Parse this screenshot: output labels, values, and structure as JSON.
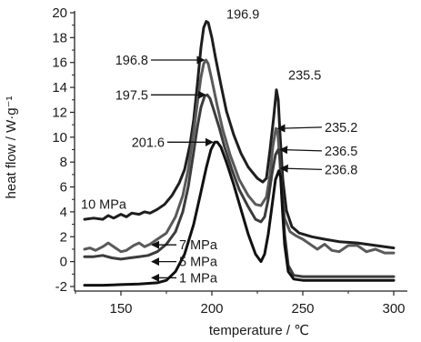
{
  "chart_data": {
    "type": "line",
    "xlabel": "temperature / ℃",
    "ylabel": "heat flow / W·g⁻¹",
    "xlim": [
      130,
      300
    ],
    "ylim": [
      -2,
      20
    ],
    "x_ticks": [
      150,
      200,
      250,
      300
    ],
    "y_ticks": [
      -2,
      0,
      2,
      4,
      6,
      8,
      10,
      12,
      14,
      16,
      18,
      20
    ],
    "grid": false,
    "legend": "none",
    "series": [
      {
        "name": "10 MPa",
        "color": "#1e1e1e",
        "points": [
          [
            130,
            3.4
          ],
          [
            135,
            3.5
          ],
          [
            140,
            3.4
          ],
          [
            143,
            3.7
          ],
          [
            146,
            3.5
          ],
          [
            150,
            3.8
          ],
          [
            153,
            3.6
          ],
          [
            156,
            3.9
          ],
          [
            160,
            3.8
          ],
          [
            163,
            4.0
          ],
          [
            166,
            3.9
          ],
          [
            170,
            4.2
          ],
          [
            174,
            4.6
          ],
          [
            178,
            5.3
          ],
          [
            182,
            6.3
          ],
          [
            185,
            7.4
          ],
          [
            188,
            9.4
          ],
          [
            190,
            11.4
          ],
          [
            192,
            14.2
          ],
          [
            194,
            17.2
          ],
          [
            195.5,
            18.8
          ],
          [
            196.9,
            19.3
          ],
          [
            198,
            19.2
          ],
          [
            200,
            18.0
          ],
          [
            202,
            16.4
          ],
          [
            205,
            14.2
          ],
          [
            208,
            12.1
          ],
          [
            212,
            10.2
          ],
          [
            216,
            8.7
          ],
          [
            220,
            7.6
          ],
          [
            225,
            6.7
          ],
          [
            228,
            6.4
          ],
          [
            230,
            6.7
          ],
          [
            232,
            9.0
          ],
          [
            234,
            11.6
          ],
          [
            235.5,
            13.8
          ],
          [
            236.5,
            13.0
          ],
          [
            237.5,
            10.2
          ],
          [
            239,
            6.6
          ],
          [
            241,
            4.1
          ],
          [
            244,
            2.8
          ],
          [
            248,
            2.3
          ],
          [
            255,
            2.0
          ],
          [
            262,
            1.8
          ],
          [
            270,
            1.6
          ],
          [
            280,
            1.5
          ],
          [
            290,
            1.3
          ],
          [
            300,
            1.1
          ]
        ]
      },
      {
        "name": "7 MPa",
        "color": "#5a5a5a",
        "points": [
          [
            130,
            1.0
          ],
          [
            133,
            1.1
          ],
          [
            136,
            0.9
          ],
          [
            140,
            1.2
          ],
          [
            143,
            1.5
          ],
          [
            146,
            1.2
          ],
          [
            150,
            0.8
          ],
          [
            153,
            0.9
          ],
          [
            157,
            1.3
          ],
          [
            160,
            1.5
          ],
          [
            163,
            1.2
          ],
          [
            166,
            1.4
          ],
          [
            170,
            1.8
          ],
          [
            175,
            2.3
          ],
          [
            180,
            3.6
          ],
          [
            184,
            5.3
          ],
          [
            187,
            7.4
          ],
          [
            190,
            10.4
          ],
          [
            192,
            12.7
          ],
          [
            194,
            14.8
          ],
          [
            195.5,
            15.9
          ],
          [
            196.8,
            16.2
          ],
          [
            198,
            15.9
          ],
          [
            200,
            14.6
          ],
          [
            203,
            12.5
          ],
          [
            206,
            10.6
          ],
          [
            210,
            8.6
          ],
          [
            215,
            6.6
          ],
          [
            220,
            5.3
          ],
          [
            224,
            4.6
          ],
          [
            227,
            4.5
          ],
          [
            230,
            5.2
          ],
          [
            232,
            7.0
          ],
          [
            233.5,
            9.2
          ],
          [
            235.2,
            10.7
          ],
          [
            236.2,
            10.4
          ],
          [
            237.2,
            8.5
          ],
          [
            238.5,
            5.3
          ],
          [
            240,
            3.5
          ],
          [
            243,
            2.4
          ],
          [
            246,
            2.1
          ],
          [
            250,
            1.8
          ],
          [
            254,
            1.4
          ],
          [
            258,
            1.0
          ],
          [
            262,
            1.4
          ],
          [
            266,
            0.9
          ],
          [
            270,
            0.8
          ],
          [
            275,
            1.3
          ],
          [
            280,
            1.3
          ],
          [
            285,
            0.8
          ],
          [
            290,
            1.0
          ],
          [
            295,
            0.7
          ],
          [
            300,
            0.7
          ]
        ]
      },
      {
        "name": "5 MPa",
        "color": "#3c3c3c",
        "points": [
          [
            130,
            0.4
          ],
          [
            135,
            0.4
          ],
          [
            140,
            0.5
          ],
          [
            145,
            0.3
          ],
          [
            150,
            0.2
          ],
          [
            155,
            0.3
          ],
          [
            160,
            0.4
          ],
          [
            165,
            0.5
          ],
          [
            170,
            0.8
          ],
          [
            175,
            1.4
          ],
          [
            180,
            2.4
          ],
          [
            184,
            4.0
          ],
          [
            187,
            6.0
          ],
          [
            190,
            8.8
          ],
          [
            192,
            10.8
          ],
          [
            194,
            12.4
          ],
          [
            196,
            13.3
          ],
          [
            197.5,
            13.4
          ],
          [
            199,
            13.1
          ],
          [
            201,
            12.2
          ],
          [
            204,
            10.8
          ],
          [
            207,
            9.2
          ],
          [
            211,
            7.4
          ],
          [
            215,
            5.8
          ],
          [
            220,
            4.4
          ],
          [
            224,
            3.4
          ],
          [
            227,
            3.2
          ],
          [
            229,
            3.6
          ],
          [
            231,
            5.0
          ],
          [
            233,
            7.0
          ],
          [
            235,
            8.6
          ],
          [
            236.5,
            9.0
          ],
          [
            237.5,
            8.4
          ],
          [
            238.5,
            5.8
          ],
          [
            240,
            2.2
          ],
          [
            242,
            -0.3
          ],
          [
            245,
            -1.1
          ],
          [
            250,
            -1.2
          ],
          [
            260,
            -1.2
          ],
          [
            270,
            -1.2
          ],
          [
            280,
            -1.2
          ],
          [
            290,
            -1.2
          ],
          [
            300,
            -1.2
          ]
        ]
      },
      {
        "name": "1 MPa",
        "color": "#111111",
        "points": [
          [
            130,
            -1.9
          ],
          [
            140,
            -1.9
          ],
          [
            150,
            -1.85
          ],
          [
            160,
            -1.8
          ],
          [
            170,
            -1.7
          ],
          [
            175,
            -1.5
          ],
          [
            180,
            -0.8
          ],
          [
            185,
            0.6
          ],
          [
            190,
            3.0
          ],
          [
            194,
            5.6
          ],
          [
            197,
            7.6
          ],
          [
            199.5,
            9.0
          ],
          [
            201.6,
            9.6
          ],
          [
            203,
            9.6
          ],
          [
            205,
            9.2
          ],
          [
            208,
            8.0
          ],
          [
            212,
            6.2
          ],
          [
            216,
            4.2
          ],
          [
            220,
            2.2
          ],
          [
            224,
            0.6
          ],
          [
            227,
            0.0
          ],
          [
            229,
            0.6
          ],
          [
            231,
            2.2
          ],
          [
            233,
            4.4
          ],
          [
            235,
            6.6
          ],
          [
            236.8,
            7.3
          ],
          [
            237.8,
            6.8
          ],
          [
            238.8,
            4.2
          ],
          [
            240,
            1.4
          ],
          [
            242,
            -0.8
          ],
          [
            245,
            -1.4
          ],
          [
            250,
            -1.5
          ],
          [
            260,
            -1.5
          ],
          [
            270,
            -1.5
          ],
          [
            280,
            -1.5
          ],
          [
            290,
            -1.5
          ],
          [
            300,
            -1.5
          ]
        ]
      }
    ],
    "annotations": [
      {
        "text": "196.9",
        "x": 196.9,
        "y": 19.3,
        "label_at": [
          208,
          19.9
        ],
        "arrow": false
      },
      {
        "text": "196.8",
        "x": 196.8,
        "y": 16.2,
        "label_at": [
          165,
          16.2
        ],
        "arrow": true
      },
      {
        "text": "197.5",
        "x": 197.5,
        "y": 13.4,
        "label_at": [
          165,
          13.4
        ],
        "arrow": true
      },
      {
        "text": "201.6",
        "x": 201.6,
        "y": 9.6,
        "label_at": [
          174,
          9.6
        ],
        "arrow": true
      },
      {
        "text": "235.5",
        "x": 235.5,
        "y": 13.8,
        "label_at": [
          242,
          15.0
        ],
        "arrow": false
      },
      {
        "text": "235.2",
        "x": 235.2,
        "y": 10.7,
        "label_at": [
          262,
          10.8
        ],
        "arrow": true
      },
      {
        "text": "236.5",
        "x": 236.5,
        "y": 9.0,
        "label_at": [
          262,
          8.9
        ],
        "arrow": true
      },
      {
        "text": "236.8",
        "x": 236.8,
        "y": 7.5,
        "label_at": [
          262,
          7.4
        ],
        "arrow": true
      }
    ],
    "series_labels": [
      {
        "text": "10 MPa",
        "at": [
          128,
          4.6
        ],
        "arrow_to": null
      },
      {
        "text": "7 MPa",
        "at": [
          182,
          1.35
        ],
        "arrow_to": [
          167,
          1.35
        ]
      },
      {
        "text": "5 MPa",
        "at": [
          182,
          0.0
        ],
        "arrow_to": [
          167,
          0.0
        ]
      },
      {
        "text": "1 MPa",
        "at": [
          182,
          -1.3
        ],
        "arrow_to": [
          167,
          -1.3
        ]
      }
    ]
  }
}
